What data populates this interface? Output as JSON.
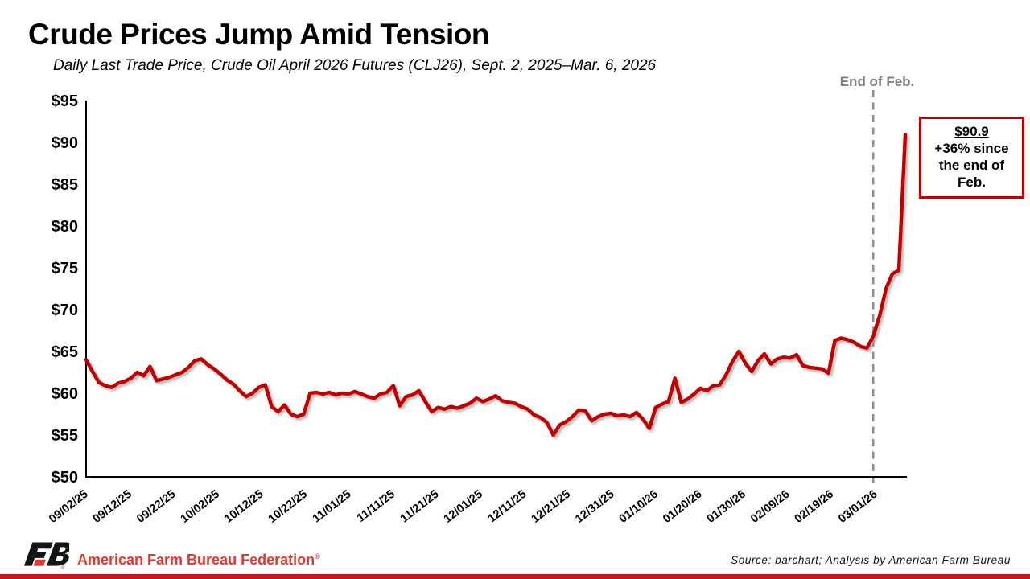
{
  "chart_data": {
    "type": "line",
    "title": "Crude Prices Jump Amid Tension",
    "subtitle": "Daily Last Trade Price, Crude Oil April 2026 Futures (CLJ26), Sept. 2, 2025–Mar. 6, 2026",
    "x_description": "Daily trading days from 09/02/25 to 03/06/26, evenly spaced",
    "x_tick_labels": [
      "09/02/25",
      "09/12/25",
      "09/22/25",
      "10/02/25",
      "10/12/25",
      "10/22/25",
      "11/01/25",
      "11/11/25",
      "11/21/25",
      "12/01/25",
      "12/11/25",
      "12/21/25",
      "12/31/25",
      "01/10/26",
      "01/20/26",
      "01/30/26",
      "02/09/26",
      "02/19/26",
      "03/01/26"
    ],
    "y_tick_labels": [
      "$95",
      "$90",
      "$85",
      "$80",
      "$75",
      "$70",
      "$65",
      "$60",
      "$55",
      "$50"
    ],
    "y_tick_step": 5,
    "ylim": [
      50,
      95
    ],
    "grid": false,
    "legend": "none",
    "series": [
      {
        "name": "Crude Oil April 2026 Futures (CLJ26) last trade price, USD/barrel",
        "color": "#c00000",
        "values": [
          64.0,
          62.6,
          61.3,
          60.9,
          60.7,
          61.2,
          61.4,
          61.8,
          62.5,
          62.1,
          63.2,
          61.5,
          61.7,
          61.9,
          62.2,
          62.5,
          63.1,
          63.9,
          64.1,
          63.4,
          62.9,
          62.3,
          61.6,
          61.1,
          60.3,
          59.6,
          60.0,
          60.7,
          61.0,
          58.4,
          57.8,
          58.6,
          57.5,
          57.2,
          57.5,
          60.0,
          60.1,
          59.9,
          60.1,
          59.8,
          60.0,
          59.9,
          60.2,
          59.9,
          59.6,
          59.4,
          59.9,
          60.1,
          60.9,
          58.5,
          59.6,
          59.8,
          60.3,
          59.0,
          57.8,
          58.3,
          58.1,
          58.4,
          58.2,
          58.5,
          58.8,
          59.4,
          59.0,
          59.3,
          59.7,
          59.1,
          58.9,
          58.8,
          58.4,
          58.1,
          57.4,
          57.1,
          56.5,
          55.0,
          56.2,
          56.6,
          57.2,
          58.0,
          57.9,
          56.7,
          57.2,
          57.5,
          57.6,
          57.3,
          57.4,
          57.2,
          57.7,
          56.9,
          55.8,
          58.3,
          58.7,
          59.0,
          61.8,
          58.9,
          59.3,
          59.9,
          60.6,
          60.3,
          60.9,
          61.0,
          62.2,
          63.8,
          65.0,
          63.6,
          62.6,
          63.9,
          64.7,
          63.5,
          64.1,
          64.3,
          64.2,
          64.6,
          63.3,
          63.1,
          63.0,
          62.9,
          62.4,
          66.3,
          66.6,
          66.4,
          66.1,
          65.6,
          65.4,
          66.8,
          69.3,
          72.5,
          74.3,
          74.7,
          90.9
        ]
      }
    ],
    "last_value": "$90.9",
    "annotations": {
      "vline": {
        "point_index": 123,
        "label": "End of Feb.",
        "color": "#8f8f8f",
        "style": "dashed"
      },
      "callout": {
        "value": "$90.9",
        "note": "+36% since the end of Feb.",
        "border_color": "#c00000"
      }
    }
  },
  "footer": {
    "logo": "afbf-fb-logo",
    "brand": "American Farm Bureau Federation",
    "reg": "®",
    "source": "Source: barchart; Analysis by American Farm Bureau"
  },
  "colors": {
    "line_red": "#c00000",
    "brand_red": "#e03a2f",
    "axis_black": "#000000",
    "vline_gray": "#8f8f8f",
    "bottom_bar_red": "#c41425"
  }
}
